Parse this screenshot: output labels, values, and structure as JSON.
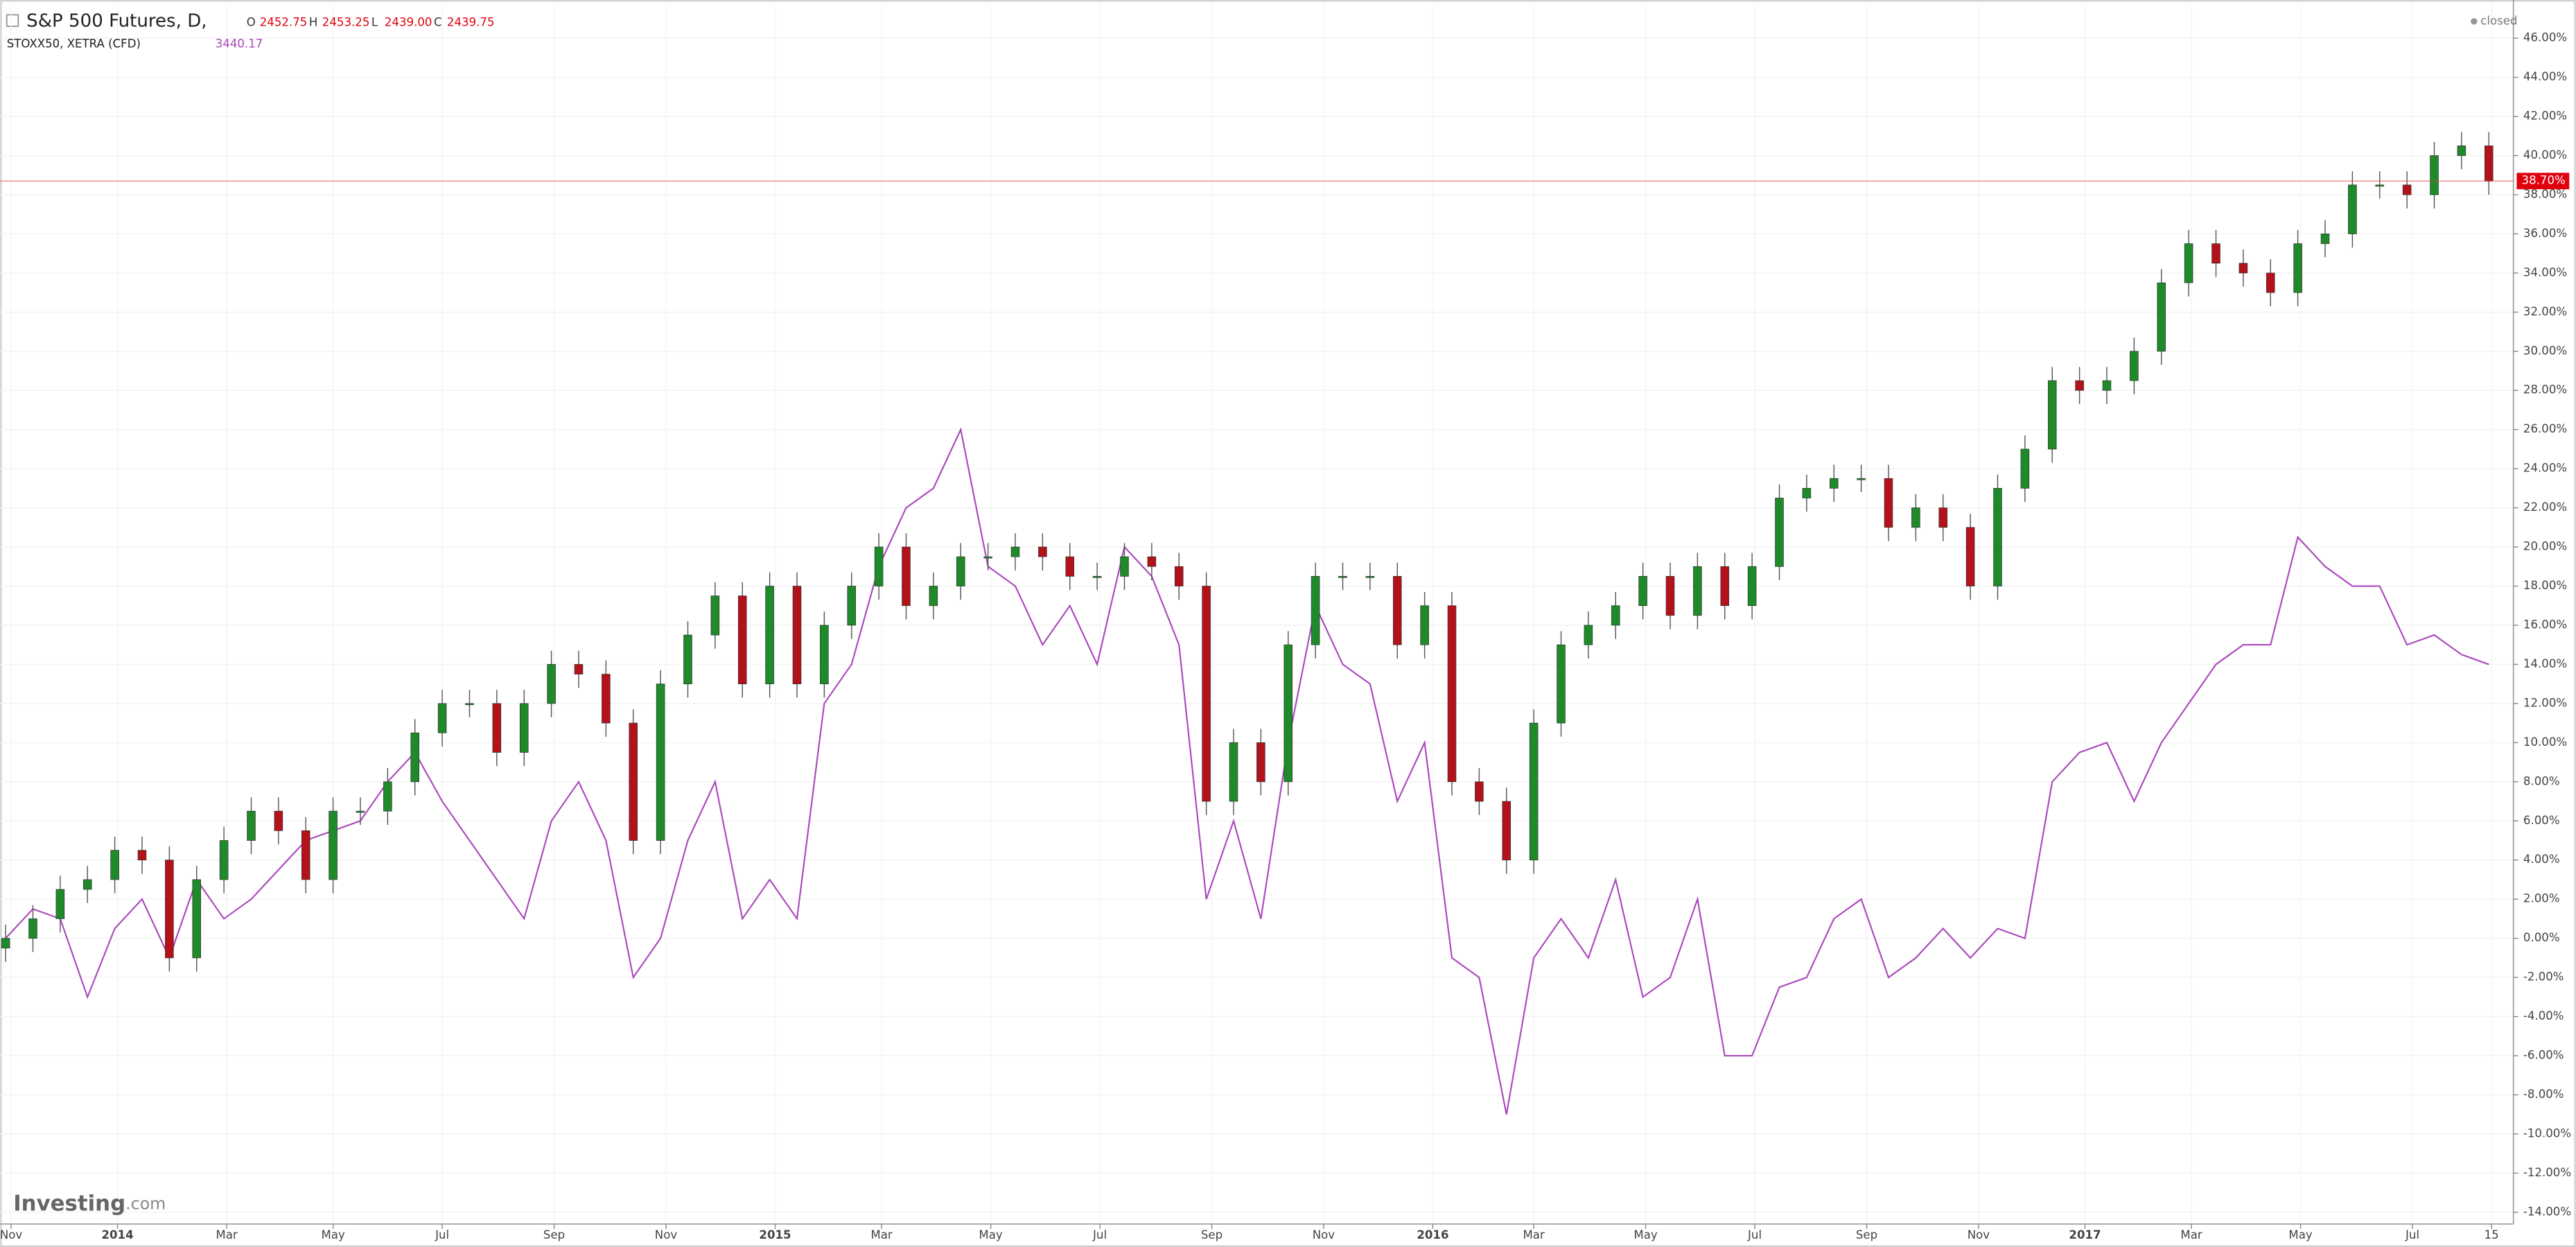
{
  "chart_data": {
    "type": "candlestick",
    "status": "closed",
    "brand": "Investing",
    "brand_suffix": ".com",
    "series": [
      {
        "name": "S&P 500 Futures, D,",
        "type": "candlestick",
        "color": "#1e8a2a",
        "down_color": "#b3121a",
        "header": [
          {
            "key": "O",
            "value": "2452.75"
          },
          {
            "key": "H",
            "value": "2453.25"
          },
          {
            "key": "L",
            "value": "2439.00"
          },
          {
            "key": "C",
            "value": "2439.75"
          }
        ],
        "open": [
          -0.5,
          0,
          1,
          2.5,
          3,
          4.5,
          4,
          -1,
          3,
          5,
          6.5,
          5.5,
          3,
          6.5,
          6.5,
          8,
          10.5,
          12,
          12,
          9.5,
          12,
          14,
          13.5,
          11,
          5,
          13,
          15.5,
          17.5,
          13,
          18,
          13,
          16,
          18,
          20,
          17,
          18,
          19.5,
          19.5,
          20,
          19.5,
          18.5,
          18.5,
          19.5,
          19,
          18,
          7,
          10,
          8,
          15,
          18.5,
          18.5,
          18.5,
          15,
          17,
          8,
          7,
          4,
          11,
          15,
          16,
          17,
          18.5,
          16.5,
          19,
          17,
          19,
          22.5,
          23,
          23.5,
          23.5,
          21,
          22,
          21,
          18,
          23,
          25,
          28.5,
          28,
          28.5,
          30,
          33.5,
          35.5,
          34.5,
          34,
          33,
          35.5,
          36,
          38.5,
          38.5,
          38,
          40,
          40.5
        ],
        "high": [
          0.7,
          1.7,
          3.2,
          3.7,
          5.2,
          5.2,
          4.7,
          3.7,
          5.7,
          7.2,
          7.2,
          6.2,
          7.2,
          7.2,
          8.7,
          11.2,
          12.7,
          12.7,
          12.7,
          12.7,
          14.7,
          14.7,
          14.2,
          11.7,
          13.7,
          16.2,
          18.2,
          18.2,
          18.7,
          18.7,
          16.7,
          18.7,
          20.7,
          20.7,
          18.7,
          20.2,
          20.2,
          20.7,
          20.7,
          20.2,
          19.2,
          20.2,
          20.2,
          19.7,
          18.7,
          10.7,
          10.7,
          15.7,
          19.2,
          19.2,
          19.2,
          19.2,
          17.7,
          17.7,
          8.7,
          7.7,
          11.7,
          15.7,
          16.7,
          17.7,
          19.2,
          19.2,
          19.7,
          19.7,
          19.7,
          23.2,
          23.7,
          24.2,
          24.2,
          24.2,
          22.7,
          22.7,
          21.7,
          23.7,
          25.7,
          29.2,
          29.2,
          29.2,
          30.7,
          34.2,
          36.2,
          36.2,
          35.2,
          34.7,
          36.2,
          36.7,
          39.2,
          39.2,
          39.2,
          40.7,
          41.2,
          41.2
        ],
        "low": [
          -1.2,
          -0.7,
          0.3,
          1.8,
          2.3,
          3.3,
          -1.7,
          -1.7,
          2.3,
          4.3,
          4.8,
          2.3,
          2.3,
          5.8,
          5.8,
          7.3,
          9.8,
          11.3,
          8.8,
          8.8,
          11.3,
          12.8,
          10.3,
          4.3,
          4.3,
          12.3,
          14.8,
          12.3,
          12.3,
          12.3,
          12.3,
          15.3,
          17.3,
          16.3,
          16.3,
          17.3,
          18.8,
          18.8,
          18.8,
          17.8,
          17.8,
          17.8,
          18.3,
          17.3,
          6.3,
          6.3,
          7.3,
          7.3,
          14.3,
          17.8,
          17.8,
          14.3,
          14.3,
          7.3,
          6.3,
          3.3,
          3.3,
          10.3,
          14.3,
          15.3,
          16.3,
          15.8,
          15.8,
          16.3,
          16.3,
          18.3,
          21.8,
          22.3,
          22.8,
          20.3,
          20.3,
          20.3,
          17.3,
          17.3,
          22.3,
          24.3,
          27.3,
          27.3,
          27.8,
          29.3,
          32.8,
          33.8,
          33.3,
          32.3,
          32.3,
          34.8,
          35.3,
          37.8,
          37.3,
          37.3,
          39.3,
          38.0
        ],
        "close": [
          0,
          1,
          2.5,
          3,
          4.5,
          4,
          -1,
          3,
          5,
          6.5,
          5.5,
          3,
          6.5,
          6.5,
          8,
          10.5,
          12,
          12,
          9.5,
          12,
          14,
          13.5,
          11,
          5,
          13,
          15.5,
          17.5,
          13,
          18,
          13,
          16,
          18,
          20,
          17,
          18,
          19.5,
          19.5,
          20,
          19.5,
          18.5,
          18.5,
          19.5,
          19,
          18,
          7,
          10,
          8,
          15,
          18.5,
          18.5,
          18.5,
          15,
          17,
          8,
          7,
          4,
          11,
          15,
          16,
          17,
          18.5,
          16.5,
          19,
          17,
          19,
          22.5,
          23,
          23.5,
          23.5,
          21,
          22,
          21,
          18,
          23,
          25,
          28.5,
          28,
          28.5,
          30,
          33.5,
          35.5,
          34.5,
          34,
          33,
          35.5,
          36,
          38.5,
          38.5,
          38,
          40,
          40.5,
          38.7
        ]
      },
      {
        "name": "STOXX50, XETRA (CFD)",
        "type": "line",
        "color": "#ab47bc",
        "last_label": "3440.17",
        "values": [
          0,
          1.5,
          1,
          -3,
          0.5,
          2,
          -1,
          3,
          1,
          2,
          3.5,
          5,
          5.5,
          6,
          8,
          9.5,
          7,
          5,
          3,
          1,
          6,
          8,
          5,
          -2,
          0,
          5,
          8,
          1,
          3,
          1,
          12,
          14,
          19,
          22,
          23,
          26,
          19,
          18,
          15,
          17,
          14,
          20,
          18.5,
          15,
          2,
          6,
          1,
          10,
          17,
          14,
          13,
          7,
          10,
          -1,
          -2,
          -9,
          -1,
          1,
          -1,
          3,
          -3,
          -2,
          2,
          -6,
          -6,
          -2.5,
          -2,
          1,
          2,
          -2,
          -1,
          0.5,
          -1,
          0.5,
          0,
          8,
          9.5,
          10,
          7,
          10,
          12,
          14,
          15,
          15,
          20.5,
          19,
          18,
          18,
          15,
          15.5,
          14.5,
          14
        ]
      }
    ],
    "last_value": {
      "value": 38.7,
      "label": "38.70%"
    },
    "xlim": [
      -0.2,
      91.9
    ],
    "xticks": [
      {
        "value": 0.2,
        "label": "Nov"
      },
      {
        "value": 4.1,
        "label": "2014"
      },
      {
        "value": 8.1,
        "label": "Mar"
      },
      {
        "value": 12.0,
        "label": "May"
      },
      {
        "value": 16.0,
        "label": "Jul"
      },
      {
        "value": 20.1,
        "label": "Sep"
      },
      {
        "value": 24.2,
        "label": "Nov"
      },
      {
        "value": 28.2,
        "label": "2015"
      },
      {
        "value": 32.1,
        "label": "Mar"
      },
      {
        "value": 36.1,
        "label": "May"
      },
      {
        "value": 40.1,
        "label": "Jul"
      },
      {
        "value": 44.2,
        "label": "Sep"
      },
      {
        "value": 48.3,
        "label": "Nov"
      },
      {
        "value": 52.3,
        "label": "2016"
      },
      {
        "value": 56.0,
        "label": "Mar"
      },
      {
        "value": 60.1,
        "label": "May"
      },
      {
        "value": 64.1,
        "label": "Jul"
      },
      {
        "value": 68.2,
        "label": "Sep"
      },
      {
        "value": 72.3,
        "label": "Nov"
      },
      {
        "value": 76.2,
        "label": "2017"
      },
      {
        "value": 80.1,
        "label": "Mar"
      },
      {
        "value": 84.1,
        "label": "May"
      },
      {
        "value": 88.2,
        "label": "Jul"
      },
      {
        "value": 91.1,
        "label": "15"
      }
    ],
    "ylim": [
      -14.6,
      47.7
    ],
    "yticks": [
      {
        "value": -14,
        "label": "-14.00%"
      },
      {
        "value": -12,
        "label": "-12.00%"
      },
      {
        "value": -10,
        "label": "-10.00%"
      },
      {
        "value": -8,
        "label": "-8.00%"
      },
      {
        "value": -6,
        "label": "-6.00%"
      },
      {
        "value": -4,
        "label": "-4.00%"
      },
      {
        "value": -2,
        "label": "-2.00%"
      },
      {
        "value": 0,
        "label": "0.00%"
      },
      {
        "value": 2,
        "label": "2.00%"
      },
      {
        "value": 4,
        "label": "4.00%"
      },
      {
        "value": 6,
        "label": "6.00%"
      },
      {
        "value": 8,
        "label": "8.00%"
      },
      {
        "value": 10,
        "label": "10.00%"
      },
      {
        "value": 12,
        "label": "12.00%"
      },
      {
        "value": 14,
        "label": "14.00%"
      },
      {
        "value": 16,
        "label": "16.00%"
      },
      {
        "value": 18,
        "label": "18.00%"
      },
      {
        "value": 20,
        "label": "20.00%"
      },
      {
        "value": 22,
        "label": "22.00%"
      },
      {
        "value": 24,
        "label": "24.00%"
      },
      {
        "value": 26,
        "label": "26.00%"
      },
      {
        "value": 28,
        "label": "28.00%"
      },
      {
        "value": 30,
        "label": "30.00%"
      },
      {
        "value": 32,
        "label": "32.00%"
      },
      {
        "value": 34,
        "label": "34.00%"
      },
      {
        "value": 36,
        "label": "36.00%"
      },
      {
        "value": 38,
        "label": "38.00%"
      },
      {
        "value": 40,
        "label": "40.00%"
      },
      {
        "value": 42,
        "label": "42.00%"
      },
      {
        "value": 44,
        "label": "44.00%"
      },
      {
        "value": 46,
        "label": "46.00%"
      }
    ],
    "grid": true
  }
}
